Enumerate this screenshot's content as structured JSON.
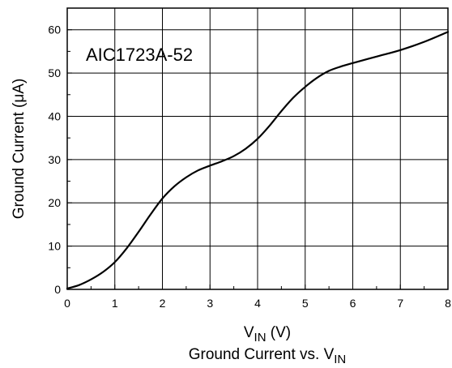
{
  "chart_data": {
    "type": "line",
    "title": "Ground Current vs. V",
    "title_subscript": "IN",
    "xlabel": "V",
    "xlabel_subscript": "IN",
    "xlabel_suffix": " (V)",
    "ylabel": "Ground Current (μA)",
    "annotation": "AIC1723A-52",
    "xlim": [
      0,
      8
    ],
    "ylim": [
      0,
      65
    ],
    "xticks": [
      0,
      1,
      2,
      3,
      4,
      5,
      6,
      7,
      8
    ],
    "yticks": [
      0,
      10,
      20,
      30,
      40,
      50,
      60
    ],
    "grid": true,
    "series": [
      {
        "x": [
          0,
          0.25,
          0.5,
          0.75,
          1.0,
          1.25,
          1.5,
          1.75,
          2.0,
          2.25,
          2.5,
          2.75,
          3.0,
          3.25,
          3.5,
          3.75,
          4.0,
          4.25,
          4.5,
          4.75,
          5.0,
          5.25,
          5.5,
          5.75,
          6.0,
          6.5,
          7.0,
          7.5,
          8.0
        ],
        "y": [
          0.2,
          1.0,
          2.3,
          4.0,
          6.3,
          9.5,
          13.3,
          17.3,
          21.0,
          23.8,
          25.9,
          27.5,
          28.6,
          29.6,
          30.8,
          32.5,
          34.8,
          37.8,
          41.2,
          44.3,
          46.8,
          48.9,
          50.5,
          51.5,
          52.3,
          53.8,
          55.3,
          57.2,
          59.5
        ]
      }
    ]
  }
}
